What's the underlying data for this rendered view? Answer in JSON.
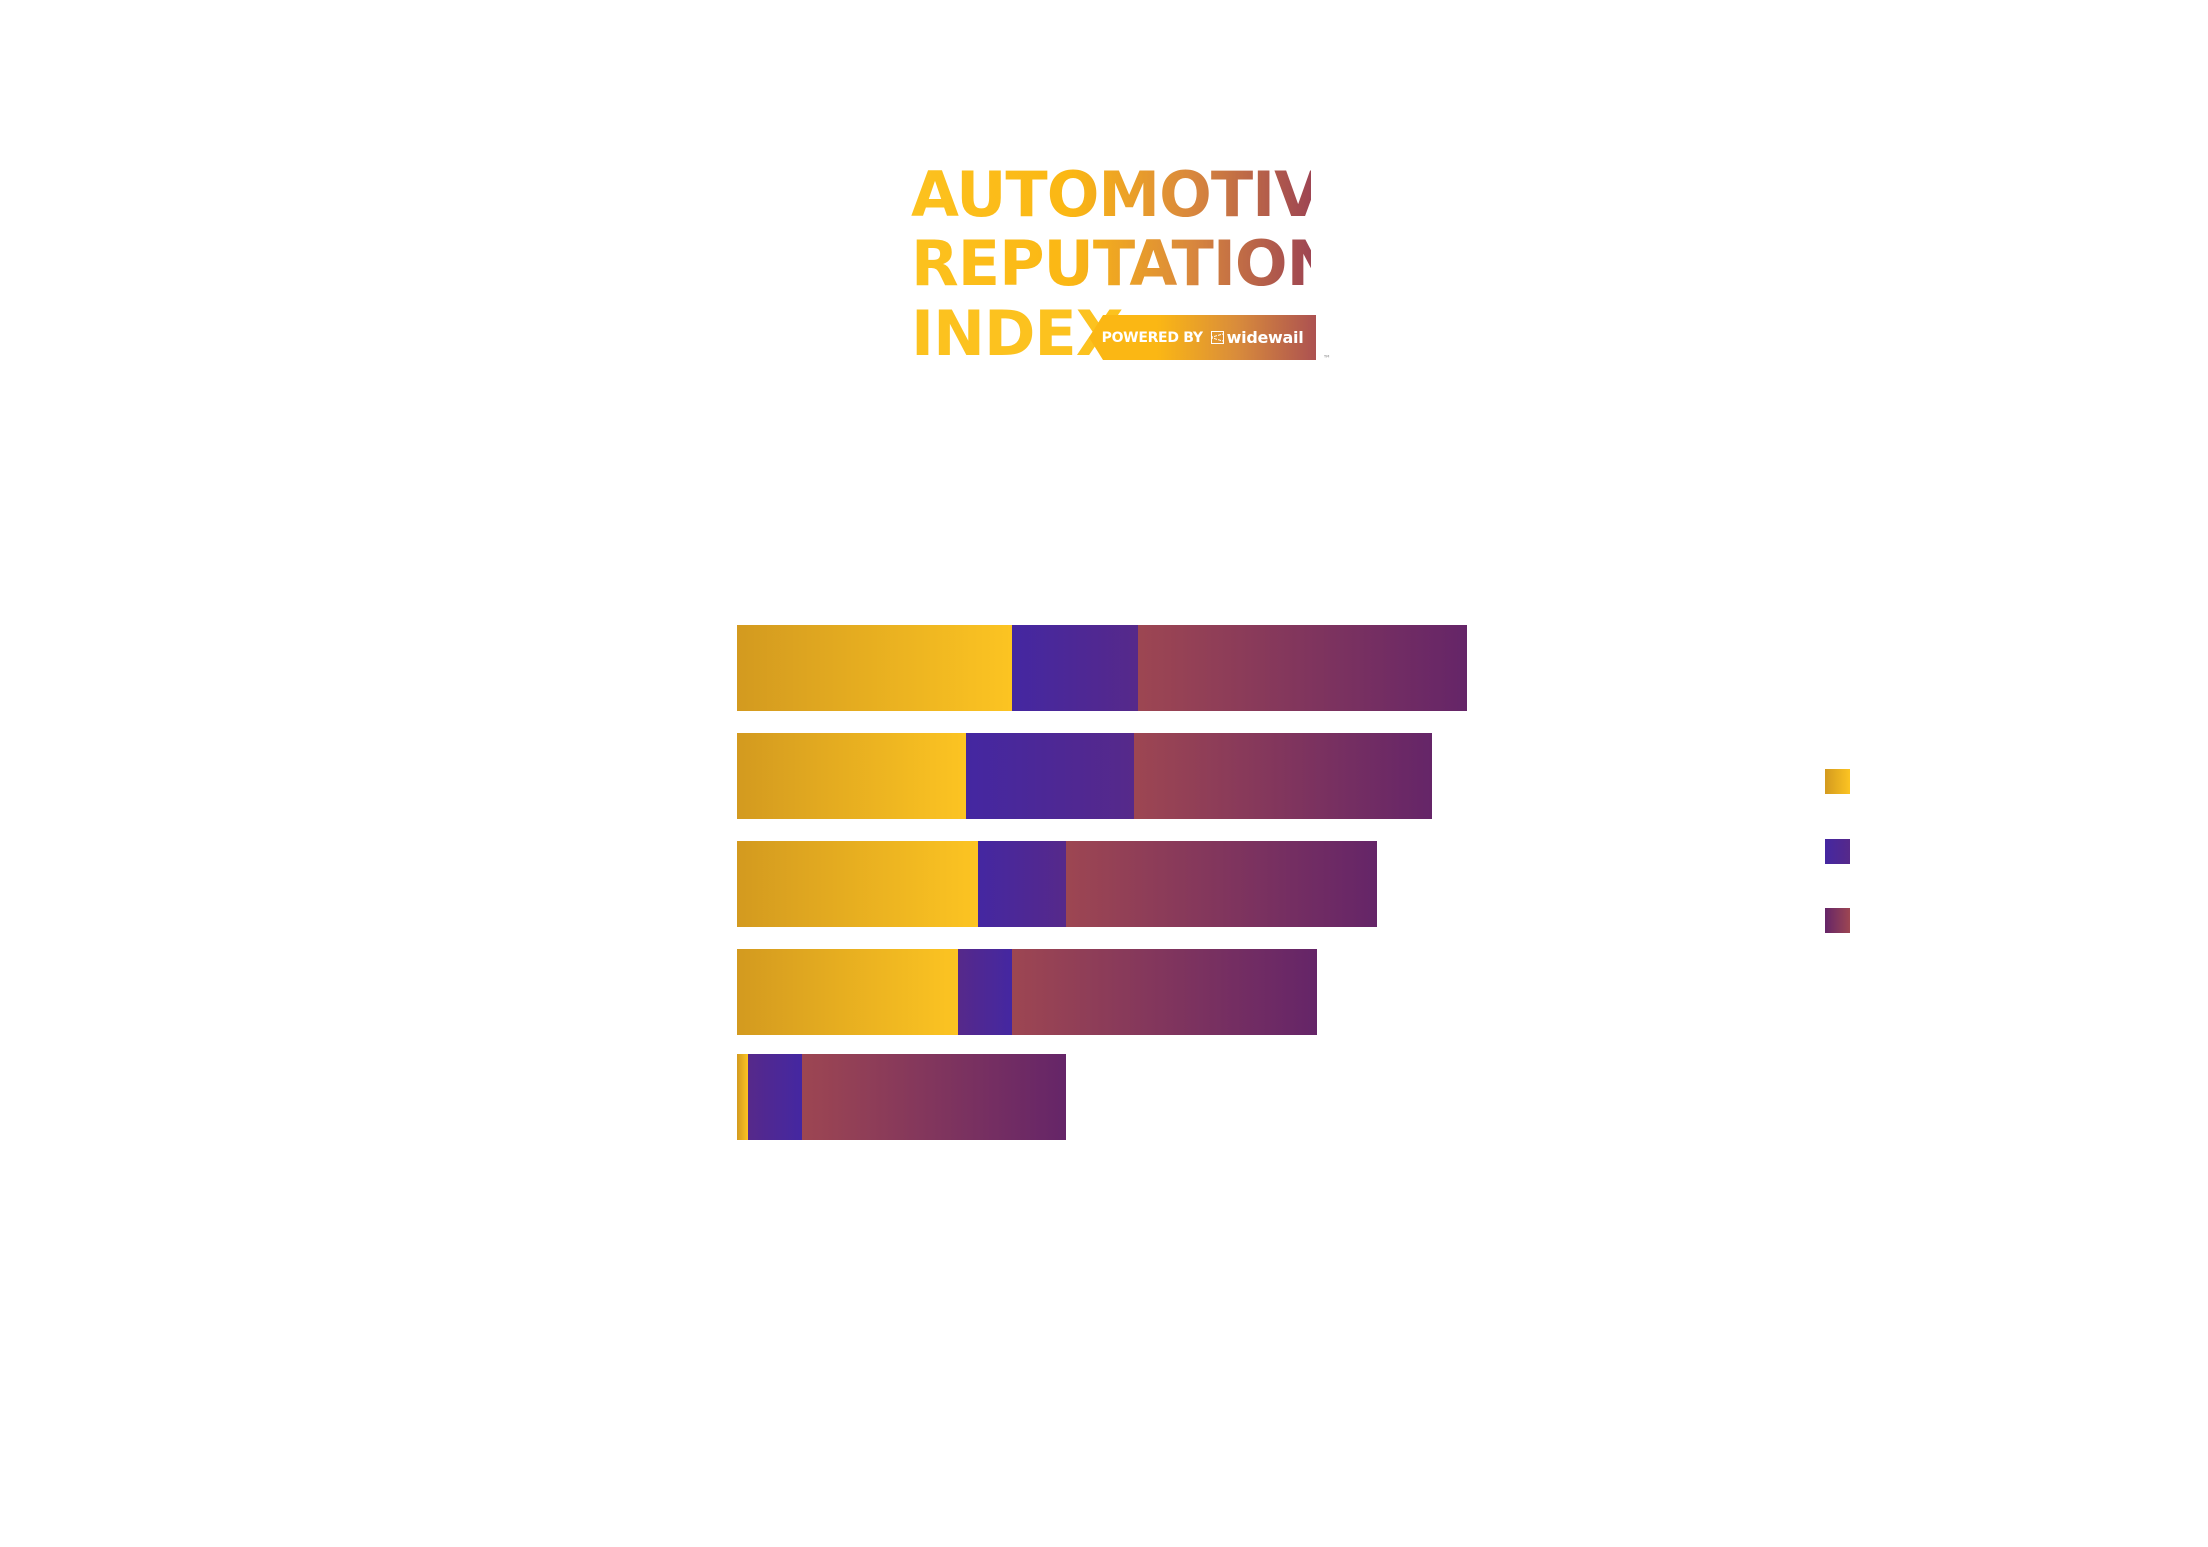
{
  "logo": {
    "line1": "AUTOMOTIVE",
    "line2": "REPUTATION",
    "line3": "INDEX",
    "badge_prefix": "POWERED BY",
    "badge_brand": "widewail",
    "trademark": "™",
    "colors": {
      "start": "#FCC21F",
      "end": "#9E4552"
    }
  },
  "colors": {
    "gold": "#FCC422",
    "purple": "#4427A1",
    "mauve": "#9D4652",
    "background": "#FFFFFF"
  },
  "chart_data": {
    "type": "bar",
    "orientation": "horizontal",
    "stacked": true,
    "title": "",
    "xlabel": "",
    "ylabel": "",
    "categories": [
      "",
      "",
      "",
      "",
      ""
    ],
    "series": [
      {
        "name": "",
        "color": "#FCC422",
        "values": [
          275,
          229,
          241,
          221,
          11
        ]
      },
      {
        "name": "",
        "color": "#4427A1",
        "values": [
          126,
          168,
          88,
          54,
          54
        ]
      },
      {
        "name": "",
        "color": "#9D4652",
        "values": [
          329,
          298,
          311,
          305,
          264
        ]
      }
    ],
    "totals": [
      730,
      695,
      640,
      580,
      329
    ],
    "units_note": "relative bar lengths (no axis ticks shown)",
    "grid": false,
    "legend_position": "right",
    "legend_labels_visible": false
  }
}
